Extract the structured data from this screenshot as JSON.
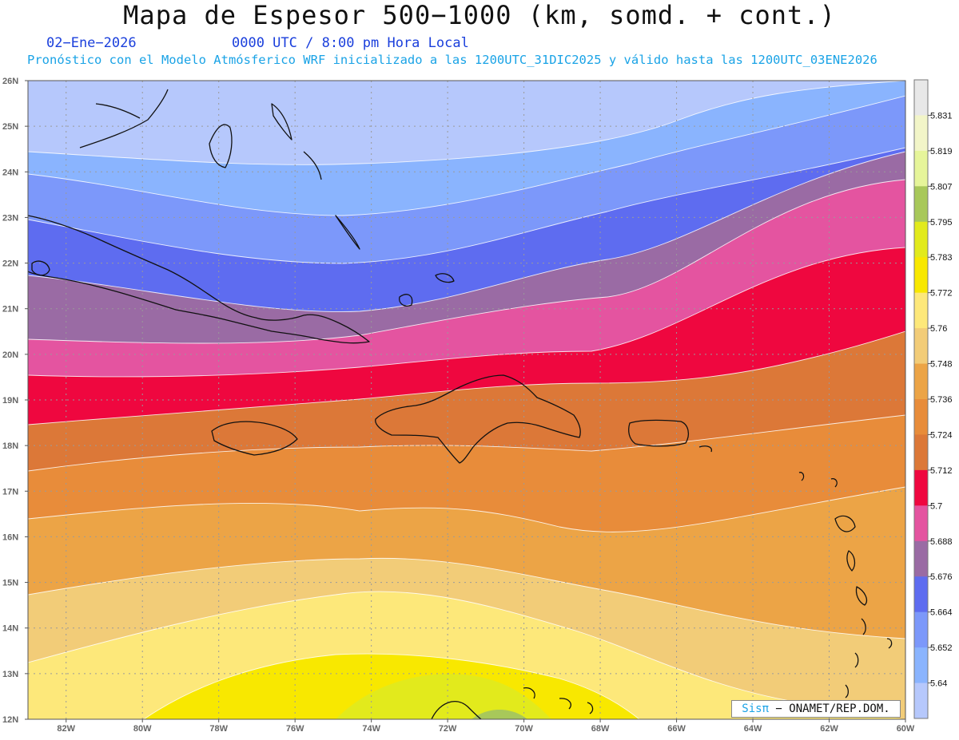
{
  "title": "Mapa de Espesor 500−1000 (km, somd. + cont.)",
  "date_label": "02−Ene−2026",
  "time_label": "0000 UTC / 8:00 pm Hora Local",
  "description": "Pronóstico con el Modelo Atmósferico WRF inicializado a las 1200UTC_31DIC2025 y válido hasta las  1200UTC_03ENE2026",
  "credit_logo": "Sisπ",
  "credit_text": " − ONAMET/REP.DOM.",
  "lat_labels": [
    "26N",
    "25N",
    "24N",
    "23N",
    "22N",
    "21N",
    "20N",
    "19N",
    "18N",
    "17N",
    "16N",
    "15N",
    "14N",
    "13N",
    "12N"
  ],
  "lon_labels": [
    "82W",
    "80W",
    "78W",
    "76W",
    "74W",
    "72W",
    "70W",
    "68W",
    "66W",
    "64W",
    "62W",
    "60W"
  ],
  "legend": {
    "values": [
      "5.831",
      "5.819",
      "5.807",
      "5.795",
      "5.783",
      "5.772",
      "5.76",
      "5.748",
      "5.736",
      "5.724",
      "5.712",
      "5.7",
      "5.688",
      "5.676",
      "5.664",
      "5.652",
      "5.64"
    ],
    "colors": [
      "#e8e8e8",
      "#f2f5c8",
      "#e6f59a",
      "#a8c85a",
      "#e2ea1c",
      "#f8e800",
      "#fde87a",
      "#f2cc78",
      "#eca446",
      "#e88c3a",
      "#dc7838",
      "#ef073f",
      "#e454a0",
      "#9a6ba4",
      "#5e6cf0",
      "#7c98fa",
      "#8ab4fe",
      "#b6c8fc"
    ]
  }
}
